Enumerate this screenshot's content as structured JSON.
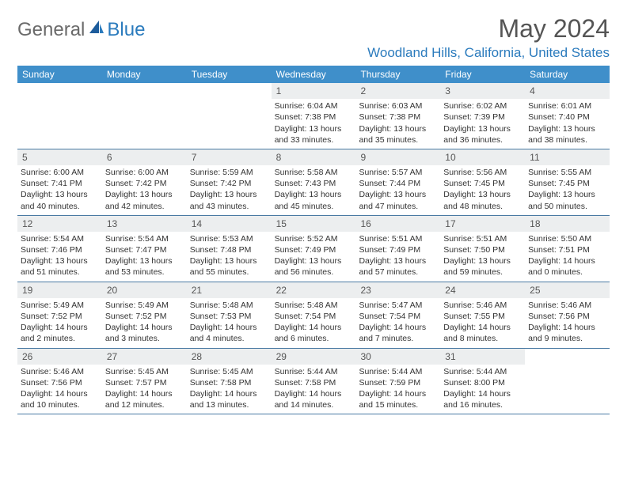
{
  "logo": {
    "text1": "General",
    "text2": "Blue"
  },
  "title": "May 2024",
  "location": "Woodland Hills, California, United States",
  "colors": {
    "headerBar": "#3f8fca",
    "accent": "#2b7bbd",
    "dayNumBg": "#eceeef",
    "ruleLine": "#4a7aa3",
    "text": "#333333",
    "logoGray": "#6a6a6a"
  },
  "weekdays": [
    "Sunday",
    "Monday",
    "Tuesday",
    "Wednesday",
    "Thursday",
    "Friday",
    "Saturday"
  ],
  "startOffset": 3,
  "days": [
    {
      "n": "1",
      "sr": "6:04 AM",
      "ss": "7:38 PM",
      "dl": "13 hours and 33 minutes."
    },
    {
      "n": "2",
      "sr": "6:03 AM",
      "ss": "7:38 PM",
      "dl": "13 hours and 35 minutes."
    },
    {
      "n": "3",
      "sr": "6:02 AM",
      "ss": "7:39 PM",
      "dl": "13 hours and 36 minutes."
    },
    {
      "n": "4",
      "sr": "6:01 AM",
      "ss": "7:40 PM",
      "dl": "13 hours and 38 minutes."
    },
    {
      "n": "5",
      "sr": "6:00 AM",
      "ss": "7:41 PM",
      "dl": "13 hours and 40 minutes."
    },
    {
      "n": "6",
      "sr": "6:00 AM",
      "ss": "7:42 PM",
      "dl": "13 hours and 42 minutes."
    },
    {
      "n": "7",
      "sr": "5:59 AM",
      "ss": "7:42 PM",
      "dl": "13 hours and 43 minutes."
    },
    {
      "n": "8",
      "sr": "5:58 AM",
      "ss": "7:43 PM",
      "dl": "13 hours and 45 minutes."
    },
    {
      "n": "9",
      "sr": "5:57 AM",
      "ss": "7:44 PM",
      "dl": "13 hours and 47 minutes."
    },
    {
      "n": "10",
      "sr": "5:56 AM",
      "ss": "7:45 PM",
      "dl": "13 hours and 48 minutes."
    },
    {
      "n": "11",
      "sr": "5:55 AM",
      "ss": "7:45 PM",
      "dl": "13 hours and 50 minutes."
    },
    {
      "n": "12",
      "sr": "5:54 AM",
      "ss": "7:46 PM",
      "dl": "13 hours and 51 minutes."
    },
    {
      "n": "13",
      "sr": "5:54 AM",
      "ss": "7:47 PM",
      "dl": "13 hours and 53 minutes."
    },
    {
      "n": "14",
      "sr": "5:53 AM",
      "ss": "7:48 PM",
      "dl": "13 hours and 55 minutes."
    },
    {
      "n": "15",
      "sr": "5:52 AM",
      "ss": "7:49 PM",
      "dl": "13 hours and 56 minutes."
    },
    {
      "n": "16",
      "sr": "5:51 AM",
      "ss": "7:49 PM",
      "dl": "13 hours and 57 minutes."
    },
    {
      "n": "17",
      "sr": "5:51 AM",
      "ss": "7:50 PM",
      "dl": "13 hours and 59 minutes."
    },
    {
      "n": "18",
      "sr": "5:50 AM",
      "ss": "7:51 PM",
      "dl": "14 hours and 0 minutes."
    },
    {
      "n": "19",
      "sr": "5:49 AM",
      "ss": "7:52 PM",
      "dl": "14 hours and 2 minutes."
    },
    {
      "n": "20",
      "sr": "5:49 AM",
      "ss": "7:52 PM",
      "dl": "14 hours and 3 minutes."
    },
    {
      "n": "21",
      "sr": "5:48 AM",
      "ss": "7:53 PM",
      "dl": "14 hours and 4 minutes."
    },
    {
      "n": "22",
      "sr": "5:48 AM",
      "ss": "7:54 PM",
      "dl": "14 hours and 6 minutes."
    },
    {
      "n": "23",
      "sr": "5:47 AM",
      "ss": "7:54 PM",
      "dl": "14 hours and 7 minutes."
    },
    {
      "n": "24",
      "sr": "5:46 AM",
      "ss": "7:55 PM",
      "dl": "14 hours and 8 minutes."
    },
    {
      "n": "25",
      "sr": "5:46 AM",
      "ss": "7:56 PM",
      "dl": "14 hours and 9 minutes."
    },
    {
      "n": "26",
      "sr": "5:46 AM",
      "ss": "7:56 PM",
      "dl": "14 hours and 10 minutes."
    },
    {
      "n": "27",
      "sr": "5:45 AM",
      "ss": "7:57 PM",
      "dl": "14 hours and 12 minutes."
    },
    {
      "n": "28",
      "sr": "5:45 AM",
      "ss": "7:58 PM",
      "dl": "14 hours and 13 minutes."
    },
    {
      "n": "29",
      "sr": "5:44 AM",
      "ss": "7:58 PM",
      "dl": "14 hours and 14 minutes."
    },
    {
      "n": "30",
      "sr": "5:44 AM",
      "ss": "7:59 PM",
      "dl": "14 hours and 15 minutes."
    },
    {
      "n": "31",
      "sr": "5:44 AM",
      "ss": "8:00 PM",
      "dl": "14 hours and 16 minutes."
    }
  ],
  "labels": {
    "sunrise": "Sunrise:",
    "sunset": "Sunset:",
    "daylight": "Daylight:"
  }
}
